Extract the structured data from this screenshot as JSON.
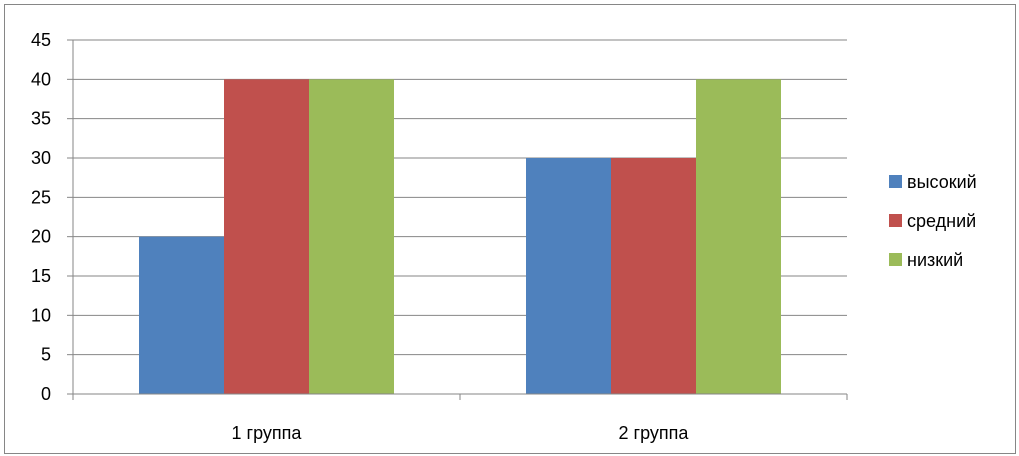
{
  "chart_data": {
    "type": "bar",
    "categories": [
      "1 группа",
      "2 группа"
    ],
    "series": [
      {
        "name": "высокий",
        "values": [
          20,
          30
        ],
        "color": "#4F81BD"
      },
      {
        "name": "средний",
        "values": [
          40,
          30
        ],
        "color": "#C0504D"
      },
      {
        "name": "низкий",
        "values": [
          40,
          40
        ],
        "color": "#9BBB59"
      }
    ],
    "ylim": [
      0,
      45
    ],
    "yticks": [
      0,
      5,
      10,
      15,
      20,
      25,
      30,
      35,
      40,
      45
    ],
    "grid": true,
    "legend": "right",
    "title": "",
    "xlabel": "",
    "ylabel": ""
  }
}
